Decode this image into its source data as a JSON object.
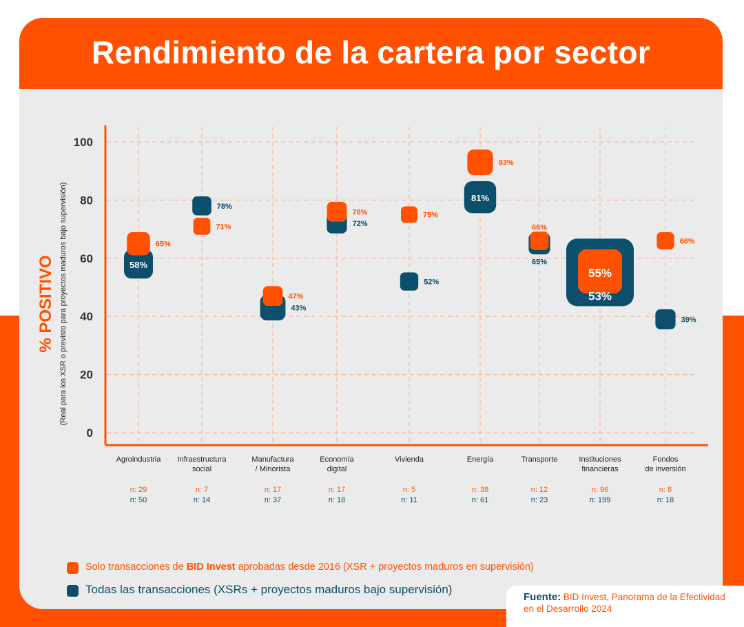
{
  "title": "Rendimiento de la cartera por sector",
  "colors": {
    "orange": "#ff5100",
    "blue": "#0b4f6c",
    "grid": "#f4b79a",
    "background": "#ebebeb"
  },
  "chart_data": {
    "type": "scatter",
    "ylabel": "% POSITIVO",
    "ylabel_sub": "(Real para los XSR o previsto para proyectos maduros bajo supervisión)",
    "ylim": [
      0,
      100
    ],
    "yticks": [
      0,
      20,
      40,
      60,
      80,
      100
    ],
    "categories": [
      [
        "Agroindustria"
      ],
      [
        "Infraestructura",
        "social"
      ],
      [
        "Manufactura",
        "/ Minorista"
      ],
      [
        "Economía",
        "digital"
      ],
      [
        "Vivienda"
      ],
      [
        "Energía"
      ],
      [
        "Transporte"
      ],
      [
        "Instituciones",
        "financieras"
      ],
      [
        "Fondos",
        "de inversión"
      ]
    ],
    "series": [
      {
        "name": "Solo transacciones de BID Invest aprobadas desde 2016 (XSR + proyectos maduros en supervisión)",
        "color": "#ff5100",
        "values": [
          65,
          71,
          47,
          76,
          75,
          93,
          66,
          55,
          66
        ],
        "labels": [
          "65%",
          "71%",
          "47%",
          "76%",
          "75%",
          "93%",
          "66%",
          "55%",
          "66%"
        ],
        "n": [
          29,
          7,
          17,
          17,
          5,
          38,
          12,
          96,
          8
        ],
        "n_labels": [
          "n: 29",
          "n: 7",
          "n: 17",
          "n: 17",
          "n: 5",
          "n: 38",
          "n: 12",
          "n: 96",
          "n: 8"
        ]
      },
      {
        "name": "Todas las transacciones (XSRs + proyectos maduros bajo supervisión)",
        "color": "#0b4f6c",
        "values": [
          58,
          78,
          43,
          72,
          52,
          81,
          65,
          53,
          39
        ],
        "labels": [
          "58%",
          "78%",
          "43%",
          "72%",
          "52%",
          "81%",
          "65%",
          "53%",
          "39%"
        ],
        "n": [
          50,
          14,
          37,
          18,
          11,
          61,
          23,
          199,
          18
        ],
        "n_labels": [
          "n: 50",
          "n: 14",
          "n: 37",
          "n: 18",
          "n: 11",
          "n: 61",
          "n: 23",
          "n: 199",
          "n: 18"
        ]
      }
    ]
  },
  "legend": {
    "orange_prefix": "Solo transacciones de ",
    "orange_bold": "BID Invest",
    "orange_suffix": " aprobadas desde 2016 (XSR + proyectos maduros en supervisión)",
    "blue": "Todas las transacciones (XSRs + proyectos maduros bajo supervisión)"
  },
  "source": {
    "label": "Fuente:",
    "text": " BID Invest, Panorama de la Efectividad en el Desarrollo 2024"
  }
}
